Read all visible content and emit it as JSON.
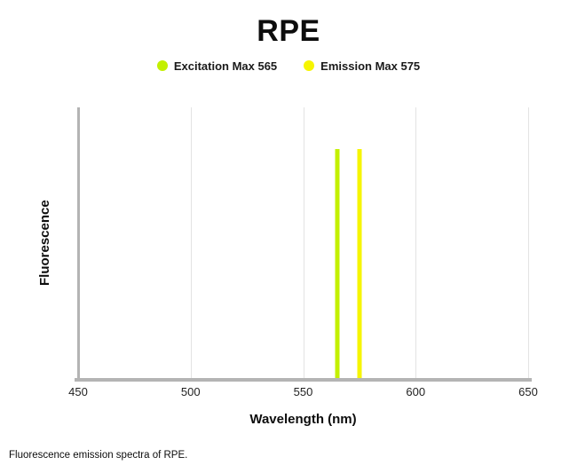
{
  "page": {
    "caption": "Fluorescence emission spectra of RPE."
  },
  "chart_data": {
    "type": "line",
    "title": "RPE",
    "xlabel": "Wavelength (nm)",
    "ylabel": "Fluorescence",
    "xlim": [
      450,
      650
    ],
    "ylim": [
      0,
      118
    ],
    "x_ticks": [
      450,
      500,
      550,
      600,
      650
    ],
    "grid": true,
    "legend_position": "top",
    "series": [
      {
        "name": "Excitation Max 565",
        "x": 565,
        "peak": 100,
        "color": "#c3f000",
        "style": "vertical-line"
      },
      {
        "name": "Emission Max 575",
        "x": 575,
        "peak": 100,
        "color": "#f6f500",
        "style": "vertical-line"
      }
    ],
    "colors": {
      "axis": "#b4b4b4",
      "gridline": "#e3e3e3"
    }
  }
}
